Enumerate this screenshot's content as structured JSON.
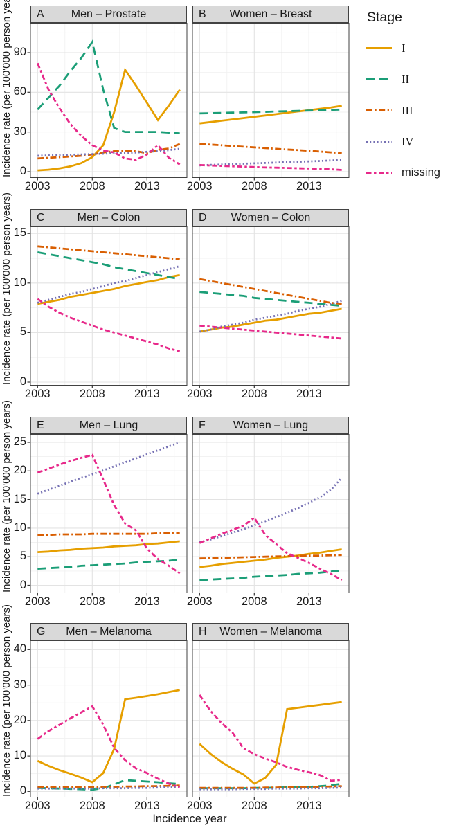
{
  "figure": {
    "y_axis_label": "Incidence rate (per 100'000 person years)",
    "x_axis_label": "Incidence year"
  },
  "legend": {
    "title": "Stage",
    "items": [
      {
        "key": "I",
        "label": "I"
      },
      {
        "key": "II",
        "label": "II"
      },
      {
        "key": "III",
        "label": "III"
      },
      {
        "key": "IV",
        "label": "IV"
      },
      {
        "key": "missing",
        "label": "missing"
      }
    ]
  },
  "styles": {
    "colors": {
      "I": "#E69F00",
      "II": "#1B9E77",
      "III": "#D95F02",
      "IV": "#7570B3",
      "missing": "#E7298A"
    },
    "linetypes": {
      "I": "solid",
      "II": "dashed",
      "III": "dashdot",
      "IV": "dotted",
      "missing": "longdash"
    },
    "grid_major": "#e3e3e3",
    "grid_minor": "#f1f1f1",
    "panel_border": "#424242",
    "strip_bg": "#d9d9d9",
    "tick_color": "#333333"
  },
  "chart_data": {
    "type": "line",
    "xlabel": "Incidence year",
    "ylabel": "Incidence rate (per 100'000 person years)",
    "x": [
      2003,
      2004,
      2005,
      2006,
      2007,
      2008,
      2009,
      2010,
      2011,
      2012,
      2013,
      2014,
      2015,
      2016
    ],
    "x_ticks": [
      2003,
      2008,
      2013
    ],
    "x_minor": [
      2005.5,
      2010.5,
      2015.5
    ],
    "xlim": [
      2002.35,
      2016.65
    ],
    "series_order": [
      "I",
      "II",
      "III",
      "IV",
      "missing"
    ],
    "rows": [
      {
        "y_ticks": [
          0,
          30,
          60,
          90
        ],
        "ylim": [
          -4.2,
          112.5
        ]
      },
      {
        "y_ticks": [
          0,
          5,
          10,
          15
        ],
        "ylim": [
          -0.28,
          15.71
        ]
      },
      {
        "y_ticks": [
          0,
          5,
          10,
          15,
          20,
          25
        ],
        "ylim": [
          -1.27,
          26.45
        ]
      },
      {
        "y_ticks": [
          0,
          10,
          20,
          30,
          40
        ],
        "ylim": [
          -1.5,
          42.6
        ]
      }
    ],
    "panels": [
      {
        "letter": "A",
        "title": "Men – Prostate",
        "row": 0,
        "col": 0,
        "series": {
          "I": [
            1,
            1.5,
            2.5,
            4,
            6.5,
            11,
            20,
            45,
            77,
            65,
            52,
            39,
            50,
            62
          ],
          "II": [
            47,
            56,
            65,
            76,
            86,
            98,
            62,
            33,
            30,
            30,
            30,
            30,
            29.5,
            29
          ],
          "III": [
            10,
            10.5,
            11,
            11.5,
            12,
            13,
            14.5,
            15.5,
            16,
            15.5,
            14,
            16.5,
            17.5,
            21
          ],
          "IV": [
            12,
            12.3,
            12.5,
            12.8,
            13,
            13.3,
            13.6,
            13.9,
            14.2,
            14.5,
            15,
            15.5,
            16.3,
            17.3
          ],
          "missing": [
            82,
            62,
            48,
            36,
            27,
            20,
            16,
            14.5,
            10,
            9,
            13,
            20,
            10.5,
            5.5
          ]
        }
      },
      {
        "letter": "B",
        "title": "Women – Breast",
        "row": 0,
        "col": 1,
        "series": {
          "I": [
            36.5,
            37.5,
            38.5,
            39.5,
            40.5,
            41.5,
            42.5,
            43.5,
            44.5,
            45.5,
            46.5,
            47.5,
            48.5,
            49.8
          ],
          "II": [
            44,
            44.2,
            44.4,
            44.6,
            44.8,
            45,
            45.2,
            45.5,
            45.7,
            46,
            46.2,
            46.4,
            46.7,
            47
          ],
          "III": [
            21,
            20.5,
            20,
            19.4,
            18.9,
            18.4,
            17.9,
            17.3,
            16.8,
            16.3,
            15.8,
            15.2,
            14.6,
            14
          ],
          "IV": [
            4.8,
            5.1,
            5.4,
            5.7,
            6,
            6.3,
            6.6,
            6.9,
            7.2,
            7.5,
            7.8,
            8.1,
            8.5,
            8.8
          ],
          "missing": [
            5,
            4.7,
            4.4,
            4.1,
            3.8,
            3.5,
            3.2,
            3,
            2.8,
            2.6,
            2.4,
            2.2,
            1.8,
            1.3
          ]
        }
      },
      {
        "letter": "C",
        "title": "Men – Colon",
        "row": 1,
        "col": 0,
        "series": {
          "I": [
            7.9,
            8.1,
            8.3,
            8.6,
            8.8,
            9,
            9.2,
            9.4,
            9.7,
            9.9,
            10.1,
            10.3,
            10.6,
            10.8
          ],
          "II": [
            13.1,
            12.9,
            12.7,
            12.5,
            12.3,
            12.1,
            11.9,
            11.6,
            11.4,
            11.2,
            11,
            10.8,
            10.6,
            10.4
          ],
          "III": [
            13.7,
            13.6,
            13.5,
            13.4,
            13.3,
            13.2,
            13.1,
            13,
            12.9,
            12.8,
            12.7,
            12.6,
            12.5,
            12.4
          ],
          "IV": [
            8,
            8.3,
            8.6,
            8.9,
            9.1,
            9.4,
            9.7,
            10,
            10.2,
            10.5,
            10.8,
            11.1,
            11.4,
            11.7
          ],
          "missing": [
            8.4,
            7.6,
            7,
            6.5,
            6.1,
            5.7,
            5.3,
            5,
            4.7,
            4.4,
            4.1,
            3.8,
            3.4,
            3.1
          ]
        }
      },
      {
        "letter": "D",
        "title": "Women – Colon",
        "row": 1,
        "col": 1,
        "series": {
          "I": [
            5.1,
            5.3,
            5.5,
            5.6,
            5.8,
            6,
            6.2,
            6.3,
            6.5,
            6.7,
            6.9,
            7,
            7.2,
            7.4
          ],
          "II": [
            9.1,
            9,
            8.9,
            8.8,
            8.7,
            8.5,
            8.4,
            8.3,
            8.2,
            8.1,
            8,
            7.9,
            7.8,
            7.7
          ],
          "III": [
            10.4,
            10.2,
            10,
            9.8,
            9.6,
            9.4,
            9.2,
            9,
            8.8,
            8.6,
            8.4,
            8.2,
            8,
            7.9
          ],
          "IV": [
            5.1,
            5.3,
            5.6,
            5.8,
            6,
            6.3,
            6.5,
            6.7,
            6.9,
            7.2,
            7.4,
            7.6,
            7.9,
            8.2
          ],
          "missing": [
            5.7,
            5.6,
            5.5,
            5.4,
            5.3,
            5.2,
            5.1,
            5,
            4.9,
            4.8,
            4.7,
            4.6,
            4.5,
            4.4
          ]
        }
      },
      {
        "letter": "E",
        "title": "Men – Lung",
        "row": 2,
        "col": 0,
        "series": {
          "I": [
            5.8,
            5.9,
            6.1,
            6.2,
            6.4,
            6.5,
            6.6,
            6.8,
            6.9,
            7,
            7.2,
            7.3,
            7.5,
            7.7
          ],
          "II": [
            2.9,
            3,
            3.1,
            3.2,
            3.4,
            3.5,
            3.6,
            3.7,
            3.8,
            4,
            4.1,
            4.2,
            4.3,
            4.5
          ],
          "III": [
            8.8,
            8.8,
            8.9,
            8.9,
            8.9,
            9,
            9,
            9,
            9,
            9,
            9,
            9.1,
            9.1,
            9.1
          ],
          "IV": [
            16,
            16.7,
            17.4,
            18.1,
            18.8,
            19.4,
            20.1,
            20.8,
            21.5,
            22.2,
            22.9,
            23.6,
            24.3,
            25
          ],
          "missing": [
            19.7,
            20.4,
            21.1,
            21.7,
            22.3,
            22.8,
            18.5,
            14,
            10.8,
            9.6,
            6.4,
            4.6,
            3.4,
            2.1
          ]
        }
      },
      {
        "letter": "F",
        "title": "Women – Lung",
        "row": 2,
        "col": 1,
        "series": {
          "I": [
            3.2,
            3.4,
            3.7,
            3.9,
            4.1,
            4.3,
            4.5,
            4.8,
            5,
            5.2,
            5.5,
            5.7,
            6,
            6.3
          ],
          "II": [
            0.9,
            1,
            1.1,
            1.2,
            1.3,
            1.5,
            1.6,
            1.7,
            1.8,
            2,
            2.1,
            2.2,
            2.4,
            2.6
          ],
          "III": [
            4.7,
            4.75,
            4.8,
            4.85,
            4.9,
            4.95,
            5,
            5.05,
            5.1,
            5.15,
            5.2,
            5.2,
            5.25,
            5.3
          ],
          "IV": [
            7.5,
            8,
            8.6,
            9.2,
            9.8,
            10.5,
            11.2,
            11.9,
            12.7,
            13.5,
            14.4,
            15.4,
            16.7,
            18.8
          ],
          "missing": [
            7.4,
            8.2,
            9,
            9.7,
            10.4,
            11.8,
            8.8,
            7.2,
            5.6,
            4.8,
            3.9,
            2.9,
            2,
            0.9
          ]
        }
      },
      {
        "letter": "G",
        "title": "Men – Melanoma",
        "row": 3,
        "col": 0,
        "series": {
          "I": [
            8.6,
            7.2,
            6,
            5,
            3.9,
            2.6,
            5.2,
            12,
            26,
            26.4,
            26.9,
            27.4,
            28,
            28.6
          ],
          "II": [
            1,
            0.9,
            0.8,
            0.7,
            0.6,
            0.5,
            0.9,
            2,
            3.2,
            3,
            2.8,
            2.6,
            2.3,
            2.1
          ],
          "III": [
            1.2,
            1.2,
            1.2,
            1.2,
            1.2,
            1.3,
            1.3,
            1.3,
            1.4,
            1.4,
            1.5,
            1.5,
            1.6,
            1.7
          ],
          "IV": [
            0.8,
            0.8,
            0.8,
            0.8,
            0.8,
            0.8,
            0.9,
            0.9,
            0.9,
            1,
            1,
            1.1,
            1.2,
            1.4
          ],
          "missing": [
            14.8,
            17,
            18.8,
            20.6,
            22.3,
            24,
            18.8,
            12.3,
            8.8,
            6.5,
            5.2,
            3.6,
            2.2,
            1.2
          ]
        }
      },
      {
        "letter": "H",
        "title": "Women – Melanoma",
        "row": 3,
        "col": 1,
        "series": {
          "I": [
            13.4,
            10.6,
            8.3,
            6.4,
            4.8,
            2.2,
            3.8,
            7.5,
            23.2,
            23.6,
            24,
            24.4,
            24.8,
            25.2
          ],
          "II": [
            0.9,
            0.9,
            0.9,
            0.9,
            0.9,
            1,
            1,
            1.1,
            1.2,
            1.2,
            1.3,
            1.5,
            1.7,
            2.2
          ],
          "III": [
            1,
            1,
            1,
            1,
            1,
            1,
            1.1,
            1.1,
            1.2,
            1.2,
            1.3,
            1.3,
            1.4,
            1.5
          ],
          "IV": [
            0.6,
            0.6,
            0.6,
            0.6,
            0.7,
            0.7,
            0.7,
            0.8,
            0.8,
            0.8,
            0.9,
            0.9,
            1,
            1.1
          ],
          "missing": [
            27.2,
            22.7,
            19.3,
            16.6,
            12.2,
            10.5,
            9.3,
            8.2,
            6.9,
            6.1,
            5.4,
            4.6,
            3,
            3.3
          ]
        }
      }
    ]
  }
}
